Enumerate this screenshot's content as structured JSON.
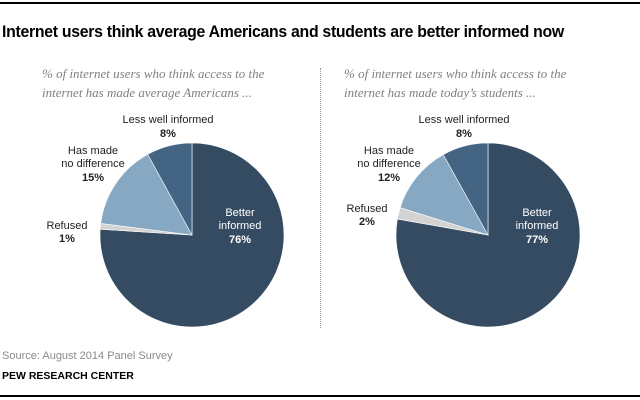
{
  "title": "Internet users think average Americans and students are better informed now",
  "source": "Source: August 2014 Panel Survey",
  "organization": "PEW RESEARCH CENTER",
  "chart_data": [
    {
      "type": "pie",
      "subtitle": "% of internet users who think access to the internet has made average Americans ...",
      "subtitle_lines": [
        "% of internet users who think access to the",
        "internet has made average Americans ..."
      ],
      "start": "12 o'clock, clockwise",
      "slices": [
        {
          "label": "Better informed",
          "label_lines": [
            "Better",
            "informed"
          ],
          "value": 76,
          "value_label": "76%",
          "color": "#344b61"
        },
        {
          "label": "Refused",
          "label_lines": [
            "Refused"
          ],
          "value": 1,
          "value_label": "1%",
          "color": "#d3d3d3"
        },
        {
          "label": "Has made no difference",
          "label_lines": [
            "Has made",
            "no difference"
          ],
          "value": 15,
          "value_label": "15%",
          "color": "#86a8c3"
        },
        {
          "label": "Less well informed",
          "label_lines": [
            "Less well informed"
          ],
          "value": 8,
          "value_label": "8%",
          "color": "#436583"
        }
      ]
    },
    {
      "type": "pie",
      "subtitle": "% of internet users who think access to the internet has made today's students ...",
      "subtitle_lines": [
        "% of internet users who think access to the",
        "internet has made today’s students ..."
      ],
      "start": "12 o'clock, clockwise",
      "slices": [
        {
          "label": "Better informed",
          "label_lines": [
            "Better",
            "informed"
          ],
          "value": 77,
          "value_label": "77%",
          "color": "#344b61"
        },
        {
          "label": "Refused",
          "label_lines": [
            "Refused"
          ],
          "value": 2,
          "value_label": "2%",
          "color": "#d3d3d3"
        },
        {
          "label": "Has made no difference",
          "label_lines": [
            "Has made",
            "no difference"
          ],
          "value": 12,
          "value_label": "12%",
          "color": "#86a8c3"
        },
        {
          "label": "Less well informed",
          "label_lines": [
            "Less well informed"
          ],
          "value": 8,
          "value_label": "8%",
          "color": "#436583"
        }
      ]
    }
  ]
}
